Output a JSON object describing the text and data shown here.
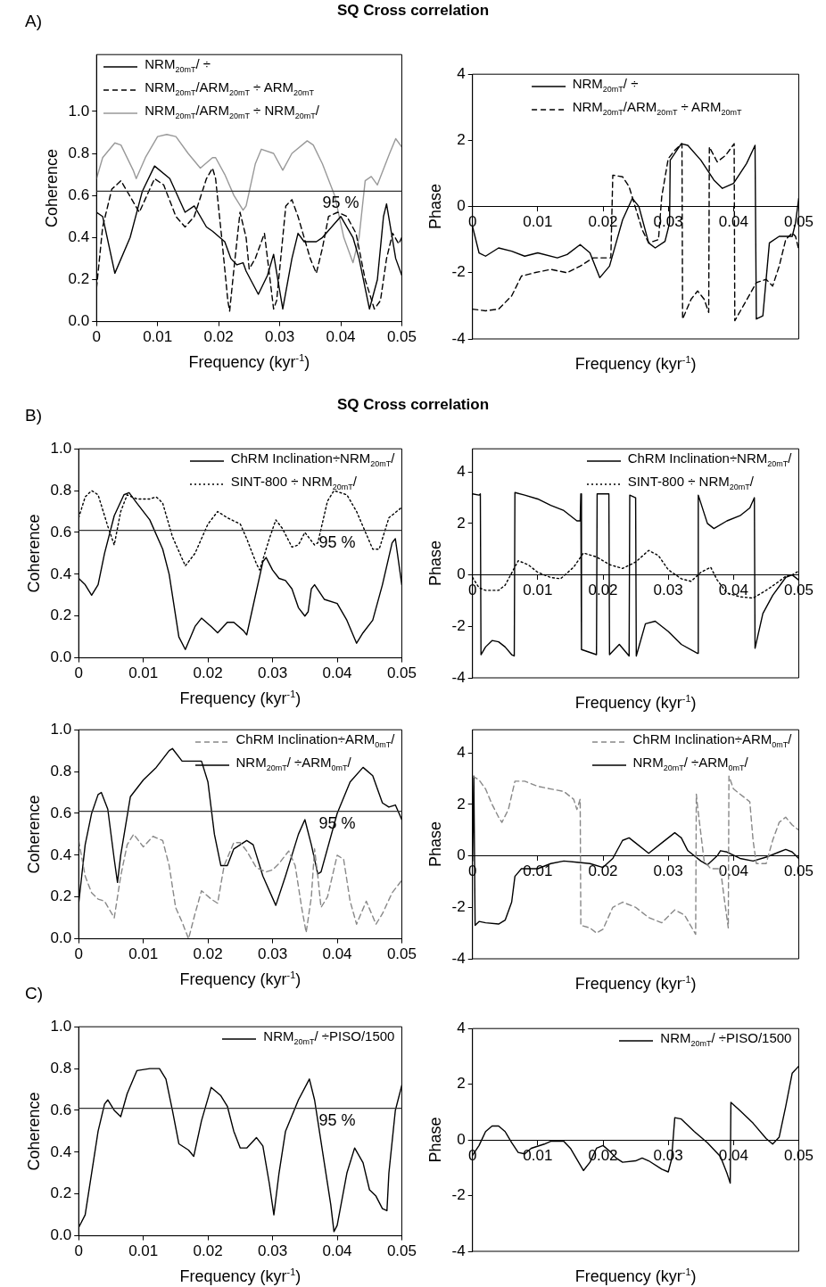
{
  "chart_data": [
    {
      "type": "line",
      "title": "SQ Cross correlation",
      "annotations": [
        "A)",
        "95 %"
      ],
      "xlabel": "Frequency (kyr$^{-1}$)",
      "ylabel": "Coherence",
      "xlim": [
        0,
        0.05
      ],
      "xticks": [
        0,
        0.01,
        0.02,
        0.03,
        0.04,
        0.05
      ],
      "ylim": [
        0,
        1.27
      ],
      "yticks": [
        {
          "value": 0,
          "label": "0.0"
        },
        {
          "value": 0.2,
          "label": "0.2"
        },
        {
          "value": 0.4,
          "label": "0.4"
        },
        {
          "value": 0.6,
          "label": "0.6"
        },
        {
          "value": 0.8,
          "label": "0.8"
        },
        {
          "value": 1,
          "label": "1.0"
        }
      ],
      "grid": false,
      "legend": "top left",
      "ref_lines": [
        {
          "axis": "y",
          "value": 0.62,
          "color": "#333333"
        }
      ],
      "series": [
        {
          "name": "NRM$_{20mT}$/ ÷",
          "color": "#000000",
          "line_style": "solid",
          "x": [
            0,
            0.001,
            0.003,
            0.0055,
            0.0075,
            0.0095,
            0.012,
            0.0145,
            0.016,
            0.018,
            0.019,
            0.021,
            0.022,
            0.023,
            0.024,
            0.0245,
            0.0265,
            0.028,
            0.029,
            0.0305,
            0.032,
            0.033,
            0.034,
            0.036,
            0.037,
            0.04,
            0.042,
            0.043,
            0.0447,
            0.046,
            0.047,
            0.0475,
            0.049,
            0.05
          ],
          "values": [
            0.52,
            0.5,
            0.23,
            0.4,
            0.62,
            0.74,
            0.68,
            0.52,
            0.55,
            0.45,
            0.43,
            0.38,
            0.3,
            0.27,
            0.28,
            0.24,
            0.13,
            0.22,
            0.32,
            0.06,
            0.3,
            0.42,
            0.38,
            0.38,
            0.4,
            0.5,
            0.4,
            0.3,
            0.06,
            0.2,
            0.5,
            0.56,
            0.3,
            0.22
          ]
        },
        {
          "name": "NRM$_{20mT}$/ARM$_{20mT}$ ÷ ARM$_{20mT}$",
          "color": "#000000",
          "line_style": "dashed",
          "x": [
            0,
            0.001,
            0.0025,
            0.004,
            0.005,
            0.007,
            0.0095,
            0.011,
            0.013,
            0.0145,
            0.016,
            0.018,
            0.019,
            0.0195,
            0.0205,
            0.0215,
            0.0218,
            0.0225,
            0.0235,
            0.0245,
            0.025,
            0.026,
            0.0275,
            0.028,
            0.029,
            0.0295,
            0.031,
            0.032,
            0.033,
            0.035,
            0.036,
            0.037,
            0.038,
            0.0395,
            0.041,
            0.0425,
            0.044,
            0.0455,
            0.0465,
            0.0475,
            0.0485,
            0.0495,
            0.05
          ],
          "values": [
            0.16,
            0.45,
            0.63,
            0.67,
            0.62,
            0.52,
            0.68,
            0.65,
            0.5,
            0.45,
            0.5,
            0.68,
            0.73,
            0.68,
            0.4,
            0.1,
            0.05,
            0.25,
            0.52,
            0.4,
            0.25,
            0.3,
            0.42,
            0.3,
            0.06,
            0.1,
            0.55,
            0.58,
            0.5,
            0.3,
            0.23,
            0.35,
            0.5,
            0.52,
            0.5,
            0.42,
            0.2,
            0.06,
            0.1,
            0.3,
            0.42,
            0.37,
            0.4
          ]
        },
        {
          "name": "NRM$_{20mT}$/ARM$_{20mT}$ ÷ NRM$_{20mT}$/",
          "color": "#999999",
          "line_style": "solid",
          "x": [
            0,
            0.001,
            0.003,
            0.004,
            0.006,
            0.0065,
            0.008,
            0.01,
            0.0115,
            0.013,
            0.015,
            0.017,
            0.019,
            0.0195,
            0.021,
            0.0225,
            0.024,
            0.0245,
            0.026,
            0.027,
            0.029,
            0.0305,
            0.032,
            0.0345,
            0.0355,
            0.037,
            0.039,
            0.0405,
            0.042,
            0.043,
            0.044,
            0.045,
            0.046,
            0.048,
            0.049,
            0.05
          ],
          "values": [
            0.68,
            0.78,
            0.85,
            0.84,
            0.72,
            0.68,
            0.78,
            0.88,
            0.89,
            0.88,
            0.8,
            0.73,
            0.78,
            0.78,
            0.7,
            0.6,
            0.53,
            0.55,
            0.75,
            0.82,
            0.8,
            0.72,
            0.8,
            0.86,
            0.84,
            0.75,
            0.6,
            0.4,
            0.28,
            0.4,
            0.67,
            0.69,
            0.65,
            0.8,
            0.87,
            0.83
          ]
        }
      ]
    },
    {
      "type": "line",
      "xlabel": "Frequency (kyr$^{-1}$)",
      "ylabel": "Phase",
      "xlim": [
        0,
        0.05
      ],
      "xticks": [
        0,
        0.01,
        0.02,
        0.03,
        0.04,
        0.05
      ],
      "ylim": [
        -4,
        4
      ],
      "yticks": [
        -4,
        -2,
        0,
        2,
        4
      ],
      "grid": false,
      "legend": "top",
      "series": [
        {
          "name": "NRM$_{20mT}$/ ÷",
          "color": "#000000",
          "line_style": "solid",
          "x": [
            0,
            0.001,
            0.002,
            0.004,
            0.006,
            0.008,
            0.01,
            0.013,
            0.0145,
            0.0165,
            0.018,
            0.0195,
            0.021,
            0.023,
            0.0245,
            0.0255,
            0.027,
            0.028,
            0.0295,
            0.0302,
            0.0303,
            0.032,
            0.033,
            0.035,
            0.037,
            0.0383,
            0.04,
            0.042,
            0.0433,
            0.0435,
            0.0445,
            0.0455,
            0.047,
            0.049,
            0.0495,
            0.05
          ],
          "values": [
            -0.6,
            -1.4,
            -1.5,
            -1.25,
            -1.35,
            -1.5,
            -1.4,
            -1.55,
            -1.45,
            -1.15,
            -1.4,
            -2.15,
            -1.8,
            -0.4,
            0.25,
            0,
            -1.1,
            -1.25,
            -1.05,
            -0.5,
            1.4,
            1.9,
            1.85,
            1.4,
            0.8,
            0.55,
            0.7,
            1.3,
            1.85,
            -3.4,
            -3.3,
            -1.1,
            -0.9,
            -0.9,
            -0.5,
            0.25
          ]
        },
        {
          "name": "NRM$_{20mT}$/ARM$_{20mT}$ ÷ ARM$_{20mT}$",
          "color": "#000000",
          "line_style": "dashed",
          "x": [
            0,
            0.002,
            0.004,
            0.006,
            0.0075,
            0.0095,
            0.012,
            0.0145,
            0.0165,
            0.0185,
            0.0212,
            0.0215,
            0.023,
            0.024,
            0.026,
            0.027,
            0.0285,
            0.029,
            0.03,
            0.031,
            0.0321,
            0.0322,
            0.0335,
            0.0345,
            0.0355,
            0.0362,
            0.0363,
            0.0375,
            0.0388,
            0.0401,
            0.0402,
            0.0415,
            0.0435,
            0.045,
            0.046,
            0.047,
            0.048,
            0.049,
            0.0495,
            0.05
          ],
          "values": [
            -3.1,
            -3.15,
            -3.1,
            -2.7,
            -2.1,
            -2,
            -1.9,
            -2,
            -1.8,
            -1.55,
            -1.55,
            0.95,
            0.9,
            0.6,
            -0.7,
            -1.1,
            -1,
            0.3,
            1.45,
            1.7,
            1.9,
            -3.4,
            -2.8,
            -2.55,
            -2.8,
            -3.2,
            1.8,
            1.35,
            1.55,
            1.9,
            -3.45,
            -3,
            -2.3,
            -2.2,
            -2.4,
            -1.8,
            -1,
            -0.8,
            -0.9,
            -1.3
          ]
        }
      ]
    },
    {
      "type": "line",
      "title": "SQ Cross correlation",
      "annotations": [
        "B)",
        "95 %"
      ],
      "xlabel": "Frequency (kyr$^{-1}$)",
      "ylabel": "Coherence",
      "xlim": [
        0,
        0.05
      ],
      "xticks": [
        0,
        0.01,
        0.02,
        0.03,
        0.04,
        0.05
      ],
      "ylim": [
        0,
        1
      ],
      "yticks": [
        {
          "value": 0,
          "label": "0.0"
        },
        {
          "value": 0.2,
          "label": "0.2"
        },
        {
          "value": 0.4,
          "label": "0.4"
        },
        {
          "value": 0.6,
          "label": "0.6"
        },
        {
          "value": 0.8,
          "label": "0.8"
        },
        {
          "value": 1,
          "label": "1.0"
        }
      ],
      "grid": false,
      "legend": "top right",
      "ref_lines": [
        {
          "axis": "y",
          "value": 0.61,
          "color": "#333333"
        }
      ],
      "series": [
        {
          "name": "ChRM Inclination÷NRM$_{20mT}$/",
          "color": "#000000",
          "line_style": "solid",
          "x": [
            0,
            0.001,
            0.002,
            0.003,
            0.004,
            0.0055,
            0.007,
            0.0078,
            0.009,
            0.011,
            0.013,
            0.014,
            0.0155,
            0.0165,
            0.018,
            0.019,
            0.0205,
            0.0215,
            0.023,
            0.024,
            0.0255,
            0.026,
            0.027,
            0.0285,
            0.029,
            0.03,
            0.031,
            0.032,
            0.033,
            0.034,
            0.035,
            0.0355,
            0.036,
            0.0365,
            0.038,
            0.04,
            0.0415,
            0.043,
            0.044,
            0.0455,
            0.047,
            0.0485,
            0.049,
            0.05
          ],
          "values": [
            0.38,
            0.35,
            0.3,
            0.35,
            0.5,
            0.68,
            0.78,
            0.79,
            0.74,
            0.66,
            0.52,
            0.4,
            0.1,
            0.04,
            0.15,
            0.19,
            0.15,
            0.12,
            0.17,
            0.17,
            0.13,
            0.11,
            0.25,
            0.46,
            0.48,
            0.42,
            0.38,
            0.37,
            0.33,
            0.24,
            0.2,
            0.22,
            0.33,
            0.35,
            0.28,
            0.26,
            0.18,
            0.07,
            0.12,
            0.18,
            0.35,
            0.55,
            0.57,
            0.35
          ]
        },
        {
          "name": "SINT-800 ÷ NRM$_{20mT}$/",
          "color": "#000000",
          "line_style": "dotted",
          "x": [
            0,
            0.001,
            0.002,
            0.003,
            0.0045,
            0.0055,
            0.0065,
            0.0075,
            0.009,
            0.011,
            0.012,
            0.013,
            0.0145,
            0.0165,
            0.018,
            0.02,
            0.0215,
            0.023,
            0.025,
            0.026,
            0.0275,
            0.028,
            0.0295,
            0.0305,
            0.0315,
            0.033,
            0.034,
            0.035,
            0.0365,
            0.037,
            0.0385,
            0.0395,
            0.0415,
            0.043,
            0.0455,
            0.0465,
            0.048,
            0.05
          ],
          "values": [
            0.67,
            0.77,
            0.8,
            0.78,
            0.63,
            0.54,
            0.7,
            0.78,
            0.76,
            0.76,
            0.77,
            0.74,
            0.58,
            0.44,
            0.5,
            0.64,
            0.7,
            0.67,
            0.64,
            0.57,
            0.45,
            0.42,
            0.57,
            0.66,
            0.62,
            0.53,
            0.54,
            0.6,
            0.54,
            0.55,
            0.75,
            0.8,
            0.78,
            0.7,
            0.52,
            0.52,
            0.67,
            0.72
          ]
        }
      ]
    },
    {
      "type": "line",
      "xlabel": "Frequency (kyr$^{-1}$)",
      "ylabel": "Phase",
      "xlim": [
        0,
        0.05
      ],
      "xticks": [
        0,
        0.01,
        0.02,
        0.03,
        0.04,
        0.05
      ],
      "ylim": [
        -4,
        4.9
      ],
      "yticks": [
        -4,
        -2,
        0,
        2,
        4
      ],
      "grid": false,
      "legend": "top right",
      "series": [
        {
          "name": "ChRM Inclination÷NRM$_{20mT}$/",
          "color": "#000000",
          "line_style": "solid",
          "x": [
            0,
            0.001,
            0.0012,
            0.0013,
            0.002,
            0.003,
            0.004,
            0.005,
            0.006,
            0.0064,
            0.0065,
            0.008,
            0.01,
            0.012,
            0.014,
            0.016,
            0.0165,
            0.0166,
            0.0167,
            0.019,
            0.0191,
            0.0209,
            0.021,
            0.0225,
            0.024,
            0.0241,
            0.025,
            0.0251,
            0.0265,
            0.028,
            0.03,
            0.032,
            0.0345,
            0.0346,
            0.036,
            0.037,
            0.039,
            0.041,
            0.0425,
            0.0432,
            0.0433,
            0.0445,
            0.046,
            0.048,
            0.049,
            0.05
          ],
          "values": [
            3.15,
            3.1,
            3.15,
            -3.1,
            -2.8,
            -2.55,
            -2.6,
            -2.8,
            -3.1,
            -3.15,
            3.2,
            3.1,
            2.95,
            2.7,
            2.5,
            2.1,
            2.1,
            3.15,
            -2.9,
            -3.1,
            3.15,
            3.15,
            -3.1,
            -2.7,
            -3.15,
            3.1,
            3,
            -3.15,
            -1.9,
            -1.8,
            -2.2,
            -2.7,
            -3.05,
            3.1,
            2,
            1.8,
            2.1,
            2.3,
            2.6,
            3,
            -2.85,
            -1.5,
            -0.8,
            -0.1,
            0,
            -0.2
          ]
        },
        {
          "name": "SINT-800 ÷ NRM$_{20mT}$/",
          "color": "#000000",
          "line_style": "dotted",
          "x": [
            0,
            0.001,
            0.002,
            0.004,
            0.005,
            0.007,
            0.0085,
            0.01,
            0.012,
            0.0135,
            0.0155,
            0.017,
            0.019,
            0.021,
            0.023,
            0.025,
            0.027,
            0.0285,
            0.03,
            0.032,
            0.0335,
            0.035,
            0.0365,
            0.0375,
            0.039,
            0.041,
            0.043,
            0.045,
            0.047,
            0.048,
            0.049,
            0.05
          ],
          "values": [
            -0.1,
            -0.5,
            -0.6,
            -0.6,
            -0.4,
            0.55,
            0.4,
            0.1,
            -0.1,
            -0.15,
            0.3,
            0.85,
            0.7,
            0.4,
            0.25,
            0.5,
            0.95,
            0.75,
            0.2,
            -0.15,
            -0.25,
            0.1,
            0.3,
            -0.2,
            -0.7,
            -0.85,
            -0.9,
            -0.6,
            -0.25,
            -0.05,
            0,
            0.15
          ]
        }
      ]
    },
    {
      "type": "line",
      "annotations": [
        "95 %"
      ],
      "xlabel": "Frequency (kyr$^{-1}$)",
      "ylabel": "Coherence",
      "xlim": [
        0,
        0.05
      ],
      "xticks": [
        0,
        0.01,
        0.02,
        0.03,
        0.04,
        0.05
      ],
      "ylim": [
        0,
        1
      ],
      "yticks": [
        {
          "value": 0,
          "label": "0.0"
        },
        {
          "value": 0.2,
          "label": "0.2"
        },
        {
          "value": 0.4,
          "label": "0.4"
        },
        {
          "value": 0.6,
          "label": "0.6"
        },
        {
          "value": 0.8,
          "label": "0.8"
        },
        {
          "value": 1,
          "label": "1.0"
        }
      ],
      "grid": false,
      "legend": "top right",
      "ref_lines": [
        {
          "axis": "y",
          "value": 0.61,
          "color": "#333333"
        }
      ],
      "series": [
        {
          "name": "ChRM Inclination÷ARM$_{0mT}$/",
          "color": "#888888",
          "line_style": "dashed",
          "x": [
            0,
            0.001,
            0.002,
            0.003,
            0.004,
            0.0055,
            0.0065,
            0.0075,
            0.0085,
            0.01,
            0.0115,
            0.013,
            0.014,
            0.015,
            0.016,
            0.017,
            0.018,
            0.019,
            0.0205,
            0.0215,
            0.0225,
            0.024,
            0.025,
            0.026,
            0.0275,
            0.029,
            0.03,
            0.031,
            0.0325,
            0.0335,
            0.0345,
            0.0352,
            0.036,
            0.0365,
            0.037,
            0.0375,
            0.0385,
            0.04,
            0.041,
            0.042,
            0.043,
            0.0445,
            0.046,
            0.047,
            0.0485,
            0.05
          ],
          "values": [
            0.47,
            0.3,
            0.22,
            0.19,
            0.18,
            0.1,
            0.3,
            0.45,
            0.5,
            0.44,
            0.49,
            0.47,
            0.35,
            0.15,
            0.08,
            0,
            0.12,
            0.23,
            0.19,
            0.17,
            0.35,
            0.46,
            0.46,
            0.42,
            0.34,
            0.32,
            0.33,
            0.36,
            0.42,
            0.35,
            0.15,
            0.03,
            0.2,
            0.43,
            0.3,
            0.15,
            0.2,
            0.4,
            0.38,
            0.18,
            0.07,
            0.18,
            0.07,
            0.12,
            0.22,
            0.28
          ]
        },
        {
          "name": "NRM$_{20mT}$/ ÷ARM$_{0mT}$/",
          "color": "#000000",
          "line_style": "solid",
          "x": [
            0,
            0.001,
            0.002,
            0.003,
            0.0035,
            0.0045,
            0.0055,
            0.006,
            0.0065,
            0.008,
            0.01,
            0.012,
            0.014,
            0.0145,
            0.016,
            0.0175,
            0.019,
            0.02,
            0.021,
            0.022,
            0.023,
            0.024,
            0.026,
            0.027,
            0.0285,
            0.0305,
            0.032,
            0.034,
            0.035,
            0.036,
            0.037,
            0.0375,
            0.04,
            0.042,
            0.044,
            0.0455,
            0.047,
            0.048,
            0.049,
            0.05
          ],
          "values": [
            0.17,
            0.45,
            0.6,
            0.69,
            0.7,
            0.62,
            0.38,
            0.27,
            0.4,
            0.68,
            0.76,
            0.82,
            0.9,
            0.91,
            0.85,
            0.85,
            0.85,
            0.75,
            0.5,
            0.35,
            0.35,
            0.43,
            0.47,
            0.45,
            0.3,
            0.16,
            0.3,
            0.5,
            0.57,
            0.45,
            0.31,
            0.32,
            0.6,
            0.75,
            0.82,
            0.78,
            0.65,
            0.63,
            0.64,
            0.57
          ]
        }
      ]
    },
    {
      "type": "line",
      "xlabel": "Frequency (kyr$^{-1}$)",
      "ylabel": "Phase",
      "xlim": [
        0,
        0.05
      ],
      "xticks": [
        0,
        0.01,
        0.02,
        0.03,
        0.04,
        0.05
      ],
      "ylim": [
        -4,
        4.9
      ],
      "yticks": [
        -4,
        -2,
        0,
        2,
        4
      ],
      "grid": false,
      "legend": "top right",
      "series": [
        {
          "name": "ChRM Inclination÷ARM$_{0mT}$/",
          "color": "#888888",
          "line_style": "dashed",
          "x": [
            0,
            0.001,
            0.002,
            0.003,
            0.004,
            0.0045,
            0.0055,
            0.0065,
            0.008,
            0.01,
            0.012,
            0.014,
            0.0155,
            0.016,
            0.0165,
            0.0166,
            0.018,
            0.019,
            0.02,
            0.0215,
            0.023,
            0.025,
            0.027,
            0.029,
            0.031,
            0.0325,
            0.0342,
            0.0343,
            0.0345,
            0.0355,
            0.0365,
            0.038,
            0.0385,
            0.0392,
            0.0393,
            0.04,
            0.0425,
            0.043,
            0.0435,
            0.045,
            0.046,
            0.047,
            0.048,
            0.049,
            0.05
          ],
          "values": [
            3.1,
            2.95,
            2.6,
            2,
            1.5,
            1.3,
            1.8,
            2.9,
            2.9,
            2.7,
            2.6,
            2.5,
            2.2,
            1.8,
            2.2,
            -2.7,
            -2.8,
            -3,
            -2.85,
            -2,
            -1.8,
            -2,
            -2.4,
            -2.6,
            -2.1,
            -2.3,
            -3.05,
            2.4,
            1.9,
            -0.2,
            -0.5,
            -0.5,
            -1.5,
            -2.8,
            3.1,
            2.6,
            2.1,
            0.6,
            -0.3,
            -0.3,
            0.6,
            1.3,
            1.5,
            1.2,
            1
          ]
        },
        {
          "name": "NRM$_{20mT}$/ ÷ARM$_{0mT}$/",
          "color": "#000000",
          "line_style": "solid",
          "x": [
            0,
            0.0002,
            0.0004,
            0.001,
            0.002,
            0.004,
            0.005,
            0.006,
            0.0065,
            0.0075,
            0.01,
            0.012,
            0.014,
            0.016,
            0.018,
            0.02,
            0.0215,
            0.023,
            0.024,
            0.025,
            0.027,
            0.029,
            0.031,
            0.032,
            0.033,
            0.035,
            0.036,
            0.0375,
            0.038,
            0.039,
            0.041,
            0.043,
            0.045,
            0.047,
            0.048,
            0.049,
            0.05
          ],
          "values": [
            -0.2,
            3.1,
            -2.7,
            -2.55,
            -2.6,
            -2.65,
            -2.5,
            -1.8,
            -0.8,
            -0.5,
            -0.5,
            -0.3,
            -0.2,
            -0.25,
            -0.3,
            -0.45,
            -0.1,
            0.6,
            0.7,
            0.5,
            0.1,
            0.5,
            0.9,
            0.7,
            0.2,
            -0.2,
            -0.35,
            0,
            0.2,
            0.15,
            -0.1,
            -0.2,
            -0.05,
            0.15,
            0.25,
            0.15,
            -0.1
          ]
        }
      ]
    },
    {
      "type": "line",
      "annotations": [
        "C)",
        "95 %"
      ],
      "xlabel": "Frequency (kyr$^{-1}$)",
      "ylabel": "Coherence",
      "xlim": [
        0,
        0.05
      ],
      "xticks": [
        0,
        0.01,
        0.02,
        0.03,
        0.04,
        0.05
      ],
      "ylim": [
        0,
        1
      ],
      "yticks": [
        {
          "value": 0,
          "label": "0.0"
        },
        {
          "value": 0.2,
          "label": "0.2"
        },
        {
          "value": 0.4,
          "label": "0.4"
        },
        {
          "value": 0.6,
          "label": "0.6"
        },
        {
          "value": 0.8,
          "label": "0.8"
        },
        {
          "value": 1,
          "label": "1.0"
        }
      ],
      "grid": false,
      "legend": "top right",
      "ref_lines": [
        {
          "axis": "y",
          "value": 0.61,
          "color": "#333333"
        }
      ],
      "series": [
        {
          "name": "NRM$_{20mT}$/ ÷PISO/1500",
          "color": "#000000",
          "line_style": "solid",
          "x": [
            0,
            0.001,
            0.002,
            0.003,
            0.004,
            0.0045,
            0.0055,
            0.0065,
            0.0075,
            0.009,
            0.011,
            0.0125,
            0.0135,
            0.0145,
            0.0155,
            0.017,
            0.0178,
            0.019,
            0.0205,
            0.022,
            0.023,
            0.024,
            0.025,
            0.026,
            0.0275,
            0.0285,
            0.0295,
            0.0302,
            0.031,
            0.032,
            0.034,
            0.0357,
            0.0365,
            0.037,
            0.038,
            0.039,
            0.0395,
            0.04,
            0.0415,
            0.0427,
            0.044,
            0.045,
            0.046,
            0.047,
            0.0477,
            0.048,
            0.049,
            0.05
          ],
          "values": [
            0.04,
            0.1,
            0.3,
            0.5,
            0.63,
            0.65,
            0.6,
            0.57,
            0.68,
            0.79,
            0.8,
            0.8,
            0.75,
            0.6,
            0.44,
            0.41,
            0.38,
            0.55,
            0.71,
            0.67,
            0.62,
            0.5,
            0.42,
            0.42,
            0.47,
            0.43,
            0.25,
            0.1,
            0.3,
            0.5,
            0.65,
            0.75,
            0.65,
            0.55,
            0.35,
            0.15,
            0.02,
            0.05,
            0.3,
            0.42,
            0.35,
            0.22,
            0.19,
            0.13,
            0.12,
            0.3,
            0.6,
            0.72
          ]
        }
      ]
    },
    {
      "type": "line",
      "xlabel": "Frequency (kyr$^{-1}$)",
      "ylabel": "Phase",
      "xlim": [
        0,
        0.05
      ],
      "xticks": [
        0,
        0.01,
        0.02,
        0.03,
        0.04,
        0.05
      ],
      "ylim": [
        -4,
        4
      ],
      "yticks": [
        -4,
        -2,
        0,
        2,
        4
      ],
      "grid": false,
      "legend": "top right",
      "series": [
        {
          "name": "NRM$_{20mT}$/ ÷PISO/1500",
          "color": "#000000",
          "line_style": "solid",
          "x": [
            0,
            0.001,
            0.002,
            0.003,
            0.004,
            0.005,
            0.006,
            0.007,
            0.008,
            0.009,
            0.011,
            0.012,
            0.014,
            0.015,
            0.0165,
            0.017,
            0.018,
            0.019,
            0.02,
            0.021,
            0.022,
            0.023,
            0.025,
            0.026,
            0.027,
            0.029,
            0.03,
            0.0305,
            0.031,
            0.032,
            0.034,
            0.036,
            0.038,
            0.039,
            0.0395,
            0.0396,
            0.041,
            0.043,
            0.045,
            0.046,
            0.047,
            0.048,
            0.049,
            0.05
          ],
          "values": [
            -0.55,
            -0.2,
            0.3,
            0.5,
            0.5,
            0.3,
            -0.1,
            -0.45,
            -0.5,
            -0.3,
            -0.15,
            -0.05,
            -0.05,
            -0.3,
            -0.9,
            -1.1,
            -0.8,
            -0.3,
            -0.2,
            -0.4,
            -0.65,
            -0.8,
            -0.75,
            -0.65,
            -0.75,
            -1.05,
            -1.15,
            -0.7,
            0.8,
            0.75,
            0.3,
            -0.1,
            -0.6,
            -1.2,
            -1.55,
            1.35,
            1.05,
            0.6,
            0.05,
            -0.15,
            0.1,
            1.2,
            2.4,
            2.65
          ]
        }
      ]
    }
  ]
}
